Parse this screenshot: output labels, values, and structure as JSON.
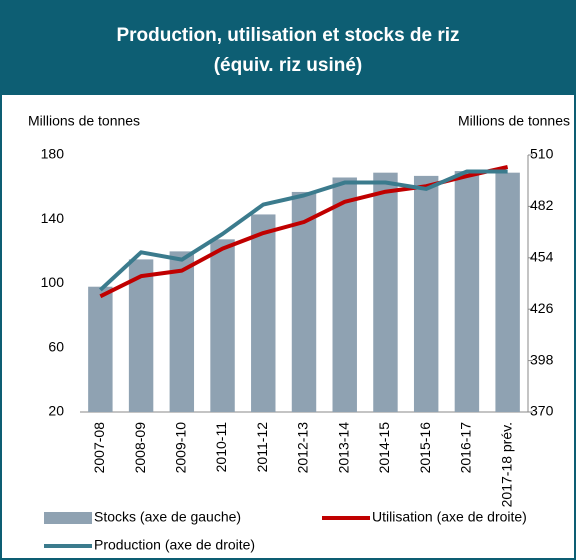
{
  "chart_data": {
    "type": "combo",
    "title": [
      "Production, utilisation et stocks de riz",
      "(équiv. riz usiné)"
    ],
    "ylabel": "Millions de tonnes",
    "y2label": "Millions de tonnes",
    "categories": [
      "2007-08",
      "2008-09",
      "2009-10",
      "2010-11",
      "2011-12",
      "2012-13",
      "2013-14",
      "2014-15",
      "2015-16",
      "2016-17",
      "2017-18 prév."
    ],
    "ylim": [
      20,
      180
    ],
    "yticks": [
      20,
      60,
      100,
      140,
      180
    ],
    "y2lim": [
      370,
      510
    ],
    "y2ticks": [
      370,
      398,
      426,
      454,
      482,
      510
    ],
    "series": [
      {
        "name": "Stocks (axe de gauche)",
        "type": "bar",
        "axis": "y",
        "color": "#8fa2b2",
        "values": [
          98,
          115,
          120,
          127.5,
          143,
          157,
          166,
          169,
          167,
          170,
          169
        ]
      },
      {
        "name": "Utilisation (axe de droite)",
        "type": "line",
        "axis": "y2",
        "color": "#c00000",
        "values": [
          433,
          444,
          447,
          459,
          467.5,
          473.5,
          484.5,
          490,
          493,
          498.5,
          503.5
        ]
      },
      {
        "name": "Production (axe de droite)",
        "type": "line",
        "axis": "y2",
        "color": "#3b7b8d",
        "values": [
          436.5,
          457,
          453,
          467,
          483,
          488,
          495,
          495,
          491.5,
          501,
          501
        ]
      }
    ]
  }
}
